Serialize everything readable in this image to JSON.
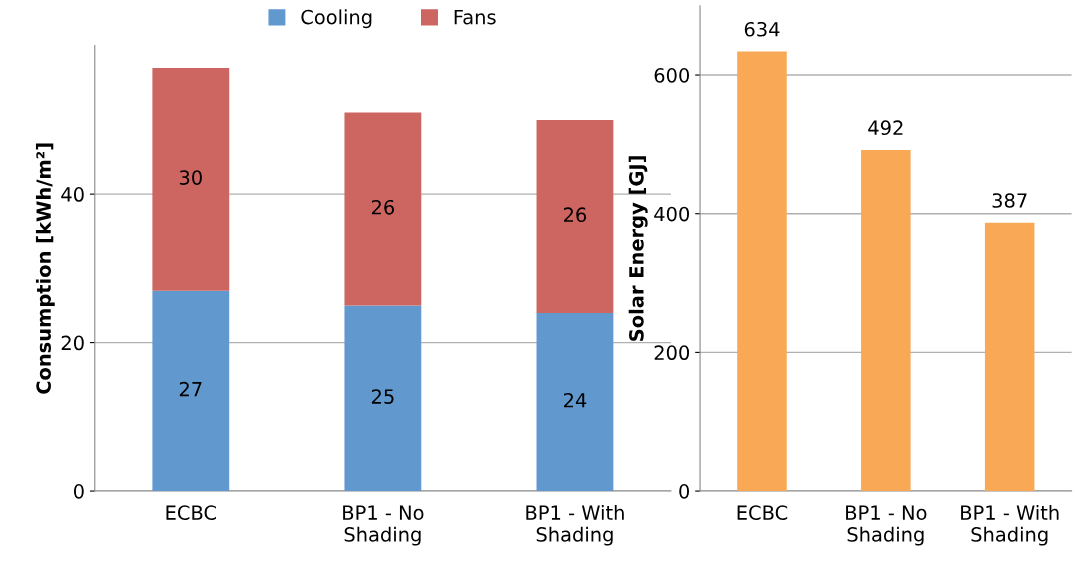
{
  "chart_data": [
    {
      "type": "bar",
      "stacked": true,
      "categories": [
        "ECBC",
        "BP1 - No\nShading",
        "BP1 - With\nShading"
      ],
      "ylabel": "Consumption [kWh/m²]",
      "ylim": [
        0,
        60
      ],
      "yticks": [
        0,
        20,
        40
      ],
      "grid": "y",
      "legend": "top",
      "series": [
        {
          "name": "Cooling",
          "color": "#6199cf",
          "values": [
            27,
            25,
            24
          ],
          "value_labels": [
            "27",
            "25",
            "24"
          ]
        },
        {
          "name": "Fans",
          "color": "#cd6561",
          "values": [
            30,
            26,
            26
          ],
          "value_labels": [
            "30",
            "26",
            "26"
          ]
        }
      ]
    },
    {
      "type": "bar",
      "categories": [
        "ECBC",
        "BP1 - No\nShading",
        "BP1 - With\nShading"
      ],
      "ylabel": "Solar Energy [GJ]",
      "ylim": [
        0,
        700
      ],
      "yticks": [
        0,
        200,
        400,
        600
      ],
      "grid": "y",
      "data_labels": true,
      "series": [
        {
          "color": "#f9a856",
          "values": [
            634,
            492,
            387
          ]
        }
      ]
    }
  ]
}
